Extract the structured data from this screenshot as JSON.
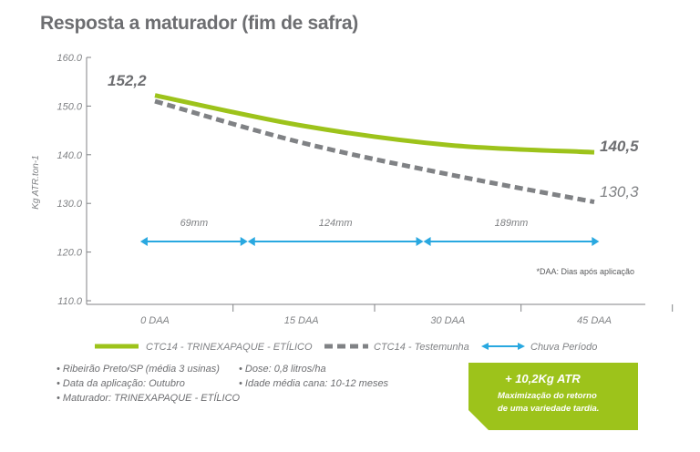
{
  "title": "Resposta a maturador (fim de safra)",
  "chart_data": {
    "type": "line",
    "title": "Resposta a maturador (fim de safra)",
    "ylabel": "Kg ATR.ton-1",
    "ylim": [
      110,
      160
    ],
    "yticks": [
      "160.0",
      "150.0",
      "140.0",
      "130.0",
      "120.0",
      "110.0"
    ],
    "categories": [
      "0 DAA",
      "15 DAA",
      "30 DAA",
      "45 DAA"
    ],
    "x": [
      0,
      15,
      30,
      45
    ],
    "series": [
      {
        "name": "CTC14 - TRINEXAPAQUE - ETÍLICO",
        "color": "#9dc31b",
        "style": "solid",
        "values": [
          152.2,
          146.0,
          142.0,
          140.5
        ],
        "start_label": "152,2",
        "end_label": "140,5"
      },
      {
        "name": "CTC14 - Testemunha",
        "color": "#808285",
        "style": "dashed",
        "values": [
          151.0,
          142.5,
          136.0,
          130.3
        ],
        "end_label": "130,3"
      }
    ],
    "rain": {
      "legend": "Chuva Período",
      "color": "#29a8e0",
      "periods": [
        {
          "from": -1.5,
          "to": 9.5,
          "label": "69mm"
        },
        {
          "from": 9.5,
          "to": 27.5,
          "label": "124mm"
        },
        {
          "from": 27.5,
          "to": 45.5,
          "label": "189mm"
        }
      ],
      "level": 125
    },
    "footnote": "*DAA: Dias após aplicação",
    "grid": false
  },
  "notes_left": [
    "• Ribeirão Preto/SP (média 3 usinas)",
    "• Data da aplicação: Outubro",
    "• Maturador: TRINEXAPAQUE - ETÍLICO"
  ],
  "notes_right": [
    "• Dose: 0,8 litros/ha",
    "• Idade média cana: 10-12 meses"
  ],
  "callout": {
    "headline": "+ 10,2Kg ATR",
    "line1": "Maximização do retorno",
    "line2": "de uma variedade tardia.",
    "color": "#9dc31b"
  }
}
